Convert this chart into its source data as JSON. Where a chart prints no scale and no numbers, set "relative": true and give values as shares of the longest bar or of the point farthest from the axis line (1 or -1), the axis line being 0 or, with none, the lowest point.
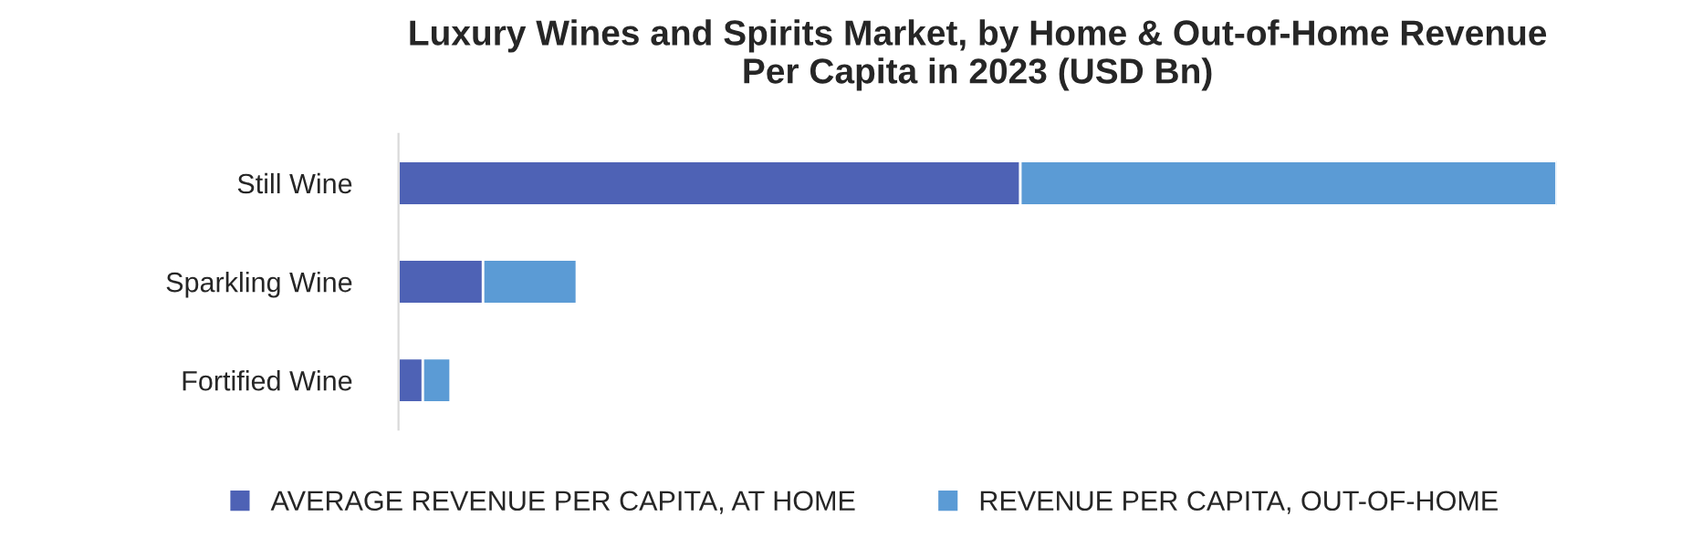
{
  "chart_data": {
    "type": "bar",
    "title": "Luxury Wines and Spirits Market, by Home & Out-of-Home Revenue\nPer Capita in 2023 (USD Bn)",
    "orientation": "horizontal",
    "stacked": true,
    "relative": true,
    "categories": [
      "Still Wine",
      "Sparkling Wine",
      "Fortified Wine"
    ],
    "series": [
      {
        "name": "AVERAGE REVENUE PER CAPITA, AT HOME",
        "color": "#4e62b5",
        "values": [
          0.537,
          0.073,
          0.021
        ]
      },
      {
        "name": "REVENUE PER CAPITA, OUT-OF-HOME",
        "color": "#5b9bd5",
        "values": [
          0.463,
          0.081,
          0.024
        ]
      }
    ],
    "legend": "bottom",
    "grid": false
  }
}
